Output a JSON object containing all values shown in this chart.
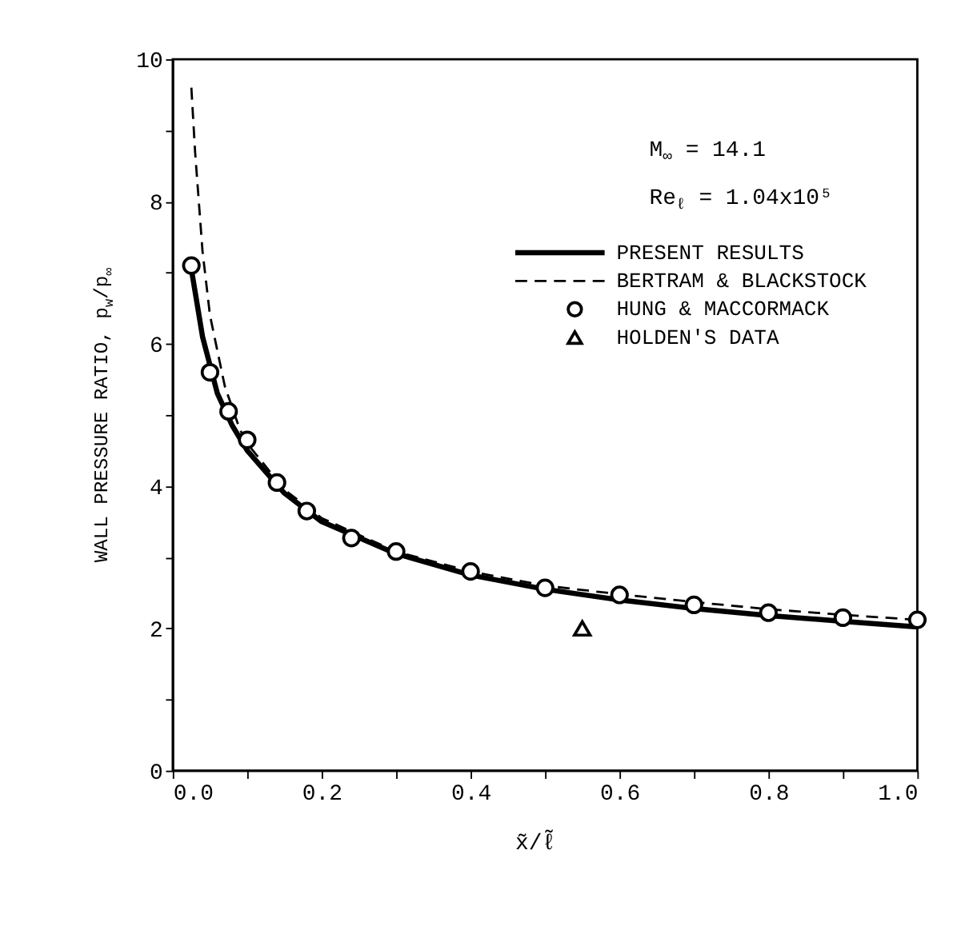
{
  "chart_data": {
    "type": "line",
    "xlabel": "x̃/ℓ̃",
    "ylabel": "WALL PRESSURE RATIO, p$_{w}$/p$_{∞}$",
    "annotations": [
      "M$_{∞}$ = 14.1",
      "Re$_{ℓ}$ = 1.04x10⁵"
    ],
    "xlim": [
      0,
      1.0
    ],
    "ylim": [
      0,
      10
    ],
    "xticks": [
      {
        "value": 0,
        "label": "0.0"
      },
      {
        "value": 0.1,
        "label": null
      },
      0.2,
      {
        "value": 0.3,
        "label": null
      },
      0.4,
      {
        "value": 0.5,
        "label": null
      },
      0.6,
      {
        "value": 0.7,
        "label": null
      },
      0.8,
      {
        "value": 0.9,
        "label": null
      },
      {
        "value": 1.0,
        "label": "1.0"
      }
    ],
    "yticks": [
      0,
      {
        "value": 1,
        "label": null
      },
      2,
      {
        "value": 3,
        "label": null
      },
      4,
      {
        "value": 5,
        "label": null
      },
      6,
      {
        "value": 7,
        "label": null
      },
      8,
      {
        "value": 9,
        "label": null
      },
      10
    ],
    "grid": false,
    "legend": "top right",
    "series": [
      {
        "name": "PRESENT RESULTS",
        "type": "line",
        "line_style": "solid",
        "marker": "none",
        "color": "#000000",
        "x": [
          0.025,
          0.04,
          0.06,
          0.08,
          0.1,
          0.15,
          0.2,
          0.3,
          0.4,
          0.5,
          0.6,
          0.7,
          0.8,
          0.9,
          1.0
        ],
        "values": [
          7.05,
          6.1,
          5.3,
          4.85,
          4.5,
          3.9,
          3.5,
          3.05,
          2.75,
          2.55,
          2.4,
          2.28,
          2.18,
          2.1,
          2.02
        ]
      },
      {
        "name": "BERTRAM & BLACKSTOCK",
        "type": "line",
        "line_style": "dashed",
        "marker": "none",
        "color": "#000000",
        "x": [
          0.025,
          0.03,
          0.04,
          0.05,
          0.07,
          0.09,
          0.1,
          0.15,
          0.2,
          0.3,
          0.4,
          0.5,
          0.6,
          0.7,
          0.8,
          0.9,
          1.0
        ],
        "values": [
          9.6,
          8.7,
          7.3,
          6.4,
          5.4,
          4.8,
          4.6,
          3.95,
          3.55,
          3.08,
          2.8,
          2.6,
          2.48,
          2.37,
          2.27,
          2.19,
          2.12
        ]
      },
      {
        "name": "HUNG & MACCORMACK",
        "type": "scatter",
        "marker": "circle",
        "color": "#000000",
        "x": [
          0.025,
          0.05,
          0.075,
          0.1,
          0.14,
          0.18,
          0.24,
          0.3,
          0.4,
          0.5,
          0.6,
          0.7,
          0.8,
          0.9,
          1.0
        ],
        "values": [
          7.1,
          5.6,
          5.05,
          4.65,
          4.05,
          3.65,
          3.27,
          3.08,
          2.8,
          2.57,
          2.47,
          2.33,
          2.22,
          2.15,
          2.12
        ]
      },
      {
        "name": "HOLDEN'S DATA",
        "type": "scatter",
        "marker": "triangle",
        "color": "#000000",
        "x": [
          0.55
        ],
        "values": [
          2.0
        ]
      }
    ]
  }
}
